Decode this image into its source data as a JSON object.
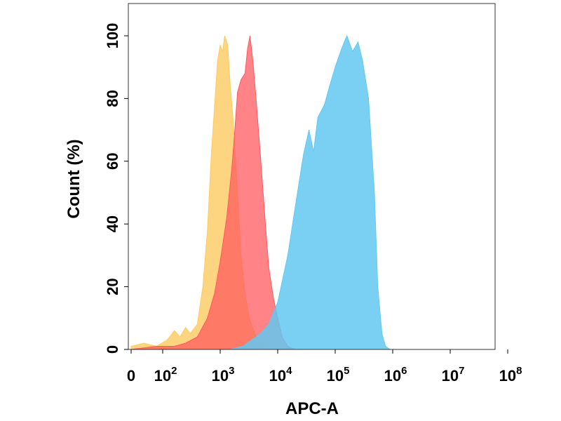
{
  "chart_data": {
    "type": "area",
    "title": "",
    "xlabel": "APC-A",
    "ylabel": "Count (%)",
    "x_scale": "biexponential",
    "x_ticks": [
      {
        "value": 0,
        "base": "0",
        "exp": ""
      },
      {
        "value": 100,
        "base": "10",
        "exp": "2"
      },
      {
        "value": 1000,
        "base": "10",
        "exp": "3"
      },
      {
        "value": 10000,
        "base": "10",
        "exp": "4"
      },
      {
        "value": 100000,
        "base": "10",
        "exp": "5"
      },
      {
        "value": 1000000,
        "base": "10",
        "exp": "6"
      },
      {
        "value": 10000000,
        "base": "10",
        "exp": "7"
      },
      {
        "value": 100000000,
        "base": "10",
        "exp": "8"
      }
    ],
    "y_ticks": [
      0,
      20,
      40,
      60,
      80,
      100
    ],
    "ylim": [
      0,
      110
    ],
    "grid": false,
    "legend": "none",
    "series": [
      {
        "color": "#FDCB60",
        "opacity": 0.8,
        "points": [
          [
            0,
            1
          ],
          [
            40,
            2
          ],
          [
            80,
            1
          ],
          [
            120,
            3
          ],
          [
            160,
            6
          ],
          [
            200,
            4
          ],
          [
            250,
            7
          ],
          [
            300,
            5
          ],
          [
            400,
            8
          ],
          [
            500,
            20
          ],
          [
            600,
            38
          ],
          [
            700,
            62
          ],
          [
            800,
            78
          ],
          [
            900,
            92
          ],
          [
            1000,
            97
          ],
          [
            1100,
            95
          ],
          [
            1200,
            100
          ],
          [
            1350,
            97
          ],
          [
            1500,
            84
          ],
          [
            1700,
            72
          ],
          [
            2000,
            50
          ],
          [
            2300,
            30
          ],
          [
            2700,
            18
          ],
          [
            3200,
            10
          ],
          [
            4000,
            5
          ],
          [
            5000,
            2
          ],
          [
            7000,
            0
          ]
        ]
      },
      {
        "color": "#FF5A5F",
        "opacity": 0.75,
        "points": [
          [
            0,
            0
          ],
          [
            80,
            1
          ],
          [
            160,
            1
          ],
          [
            250,
            2
          ],
          [
            400,
            4
          ],
          [
            600,
            10
          ],
          [
            800,
            18
          ],
          [
            1000,
            28
          ],
          [
            1300,
            42
          ],
          [
            1600,
            58
          ],
          [
            1800,
            70
          ],
          [
            2000,
            82
          ],
          [
            2300,
            86
          ],
          [
            2700,
            88
          ],
          [
            3000,
            96
          ],
          [
            3300,
            100
          ],
          [
            3700,
            92
          ],
          [
            4200,
            80
          ],
          [
            5000,
            62
          ],
          [
            6000,
            42
          ],
          [
            7000,
            26
          ],
          [
            8500,
            16
          ],
          [
            10000,
            10
          ],
          [
            12000,
            4
          ],
          [
            15000,
            1
          ],
          [
            20000,
            0
          ]
        ]
      },
      {
        "color": "#63C8F0",
        "opacity": 0.85,
        "points": [
          [
            1500,
            0
          ],
          [
            2500,
            1
          ],
          [
            3500,
            3
          ],
          [
            5000,
            5
          ],
          [
            7000,
            8
          ],
          [
            10000,
            15
          ],
          [
            15000,
            30
          ],
          [
            20000,
            45
          ],
          [
            28000,
            62
          ],
          [
            35000,
            70
          ],
          [
            42000,
            63
          ],
          [
            50000,
            74
          ],
          [
            65000,
            78
          ],
          [
            80000,
            84
          ],
          [
            100000,
            90
          ],
          [
            130000,
            96
          ],
          [
            160000,
            100
          ],
          [
            200000,
            95
          ],
          [
            250000,
            98
          ],
          [
            300000,
            92
          ],
          [
            380000,
            80
          ],
          [
            480000,
            50
          ],
          [
            550000,
            20
          ],
          [
            650000,
            5
          ],
          [
            750000,
            1
          ],
          [
            900000,
            0
          ]
        ]
      }
    ]
  }
}
